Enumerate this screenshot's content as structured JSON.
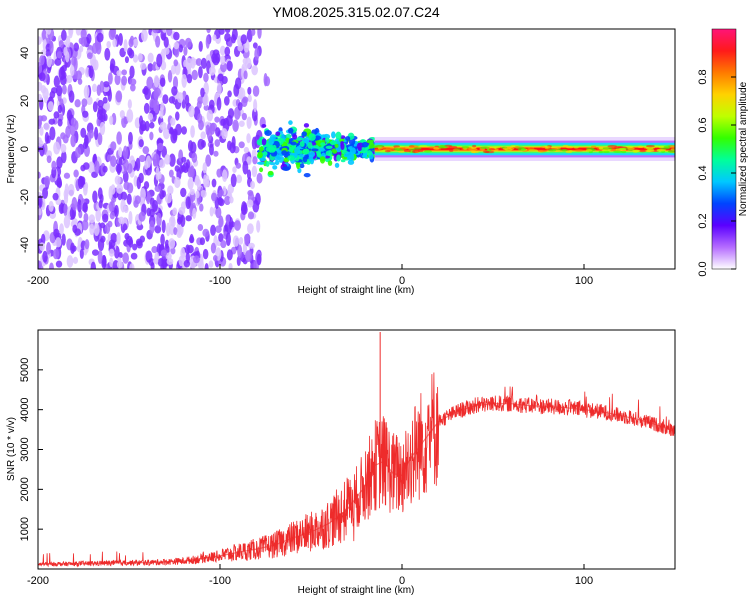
{
  "figure_title": "YM08.2025.315.02.07.C24",
  "colors": {
    "snr_line": "#ee2b2b",
    "spectrogram_low": "#b56cff",
    "spectrogram_mid": "#18d7ff",
    "spectrogram_high": "#ff1212"
  },
  "chart_data": [
    {
      "type": "heatmap",
      "name": "spectrogram",
      "title": "",
      "xlabel": "Height of straight line (km)",
      "ylabel": "Frequency (Hz)",
      "xlim": [
        -200,
        150
      ],
      "ylim": [
        -50,
        50
      ],
      "x_ticks": [
        -200,
        -100,
        0,
        100
      ],
      "y_ticks": [
        -40,
        -20,
        0,
        20,
        40
      ],
      "colorbar": {
        "label": "Normalized spectral amplitude",
        "range": [
          0,
          1
        ],
        "ticks": [
          0.0,
          0.2,
          0.4,
          0.6,
          0.8
        ],
        "tick_labels": [
          "0.0",
          "0.2",
          "0.4",
          "0.6",
          "0.8"
        ],
        "stops": [
          "#ffffff",
          "#b56cff",
          "#5a00ff",
          "#0044ff",
          "#00c8ff",
          "#00ff9a",
          "#33ff00",
          "#bfff00",
          "#ffd200",
          "#ff7a00",
          "#ff1a1a",
          "#ff1478"
        ]
      },
      "regions": [
        {
          "x_range": [
            -200,
            -75
          ],
          "freq_range": [
            -50,
            50
          ],
          "level": 0.15,
          "pattern": "scattered noise"
        },
        {
          "x_range": [
            -75,
            -15
          ],
          "freq_range": [
            -8,
            8
          ],
          "level": 0.4,
          "pattern": "narrowing band"
        },
        {
          "x_range": [
            -15,
            150
          ],
          "freq_range": [
            -2,
            2
          ],
          "level": 0.9,
          "pattern": "narrow band centered at 0 Hz"
        }
      ]
    },
    {
      "type": "line",
      "name": "snr",
      "title": "",
      "xlabel": "Height of straight line (km)",
      "ylabel": "SNR (10 * v/v)",
      "xlim": [
        -200,
        150
      ],
      "ylim": [
        0,
        6000
      ],
      "x_ticks": [
        -200,
        -100,
        0,
        100
      ],
      "y_ticks": [
        1000,
        2000,
        3000,
        4000,
        5000
      ],
      "series": [
        {
          "name": "SNR",
          "x": [
            -200,
            -180,
            -160,
            -140,
            -120,
            -110,
            -100,
            -90,
            -80,
            -70,
            -60,
            -50,
            -40,
            -30,
            -25,
            -20,
            -15,
            -10,
            -5,
            0,
            5,
            10,
            15,
            20,
            30,
            40,
            50,
            60,
            70,
            80,
            90,
            100,
            110,
            120,
            130,
            140,
            150
          ],
          "y": [
            120,
            130,
            150,
            160,
            200,
            260,
            330,
            420,
            500,
            600,
            780,
            930,
            1150,
            1500,
            1800,
            2100,
            2600,
            2700,
            2400,
            2350,
            2800,
            3100,
            3400,
            3700,
            3950,
            4100,
            4150,
            4150,
            4100,
            4080,
            4050,
            4000,
            3950,
            3850,
            3750,
            3620,
            3450
          ]
        }
      ],
      "annotations": [
        {
          "x": -12,
          "y": 5950,
          "text": "spike"
        }
      ]
    }
  ]
}
